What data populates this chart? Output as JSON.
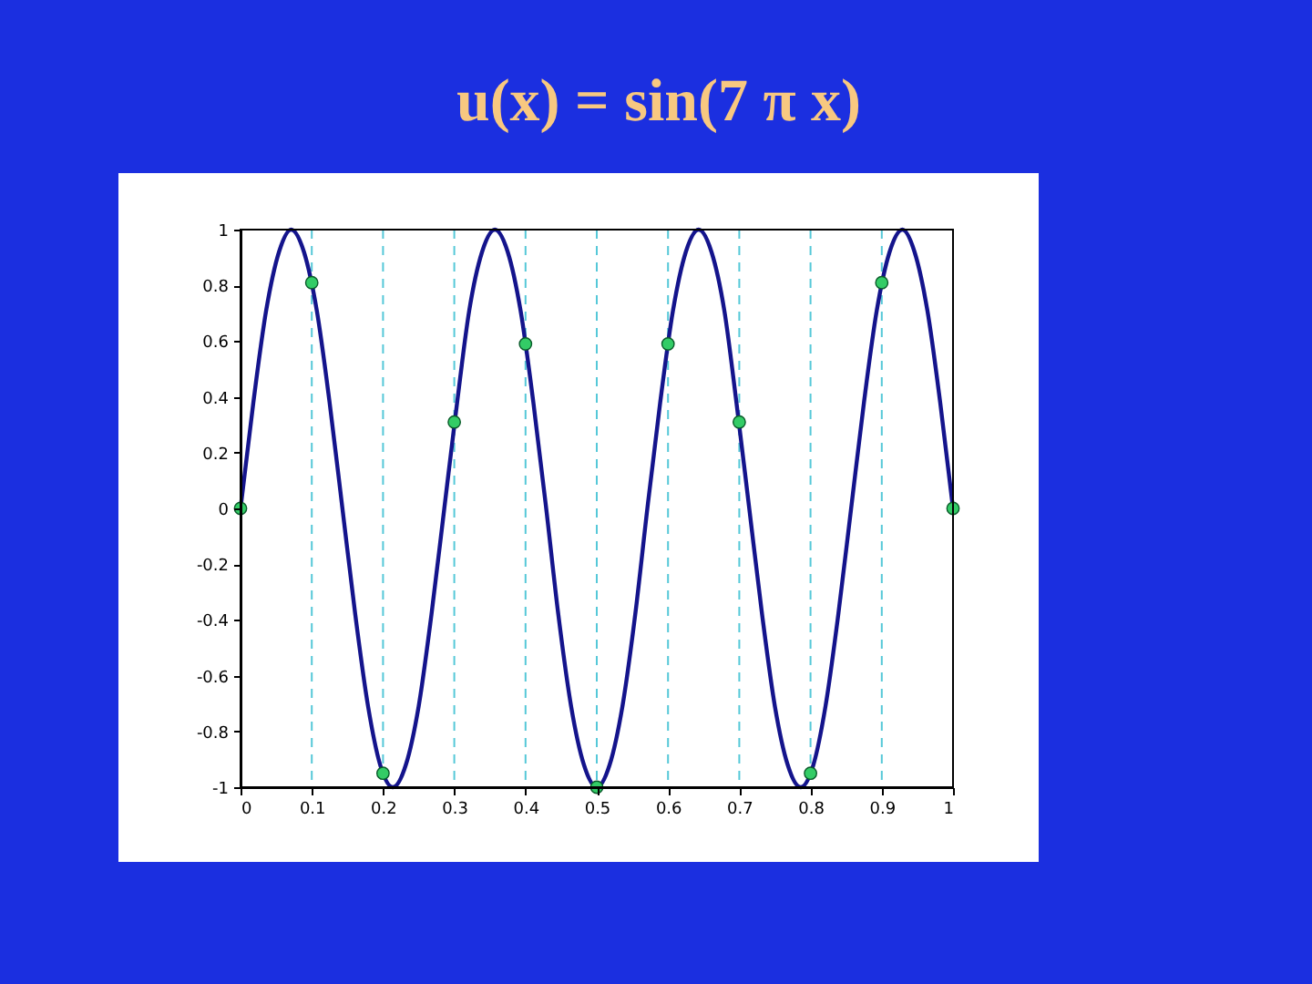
{
  "chart_data": {
    "type": "line",
    "title": "u(x) = sin(7 π x)",
    "xlim": [
      0,
      1
    ],
    "ylim": [
      -1,
      1
    ],
    "xticks": [
      0,
      0.1,
      0.2,
      0.3,
      0.4,
      0.5,
      0.6,
      0.7,
      0.8,
      0.9,
      1
    ],
    "yticks": [
      -1,
      -0.8,
      -0.6,
      -0.4,
      -0.2,
      0,
      0.2,
      0.4,
      0.6,
      0.8,
      1
    ],
    "grid": false,
    "series": [
      {
        "color": "#14148c",
        "marker": "none",
        "line_style": "solid",
        "x": [
          0,
          0.018,
          0.036,
          0.054,
          0.071,
          0.089,
          0.107,
          0.125,
          0.143,
          0.161,
          0.179,
          0.196,
          0.214,
          0.232,
          0.25,
          0.268,
          0.286,
          0.304,
          0.321,
          0.339,
          0.357,
          0.375,
          0.393,
          0.411,
          0.429,
          0.446,
          0.464,
          0.482,
          0.5,
          0.518,
          0.536,
          0.554,
          0.571,
          0.589,
          0.607,
          0.625,
          0.643,
          0.661,
          0.679,
          0.696,
          0.714,
          0.732,
          0.75,
          0.768,
          0.786,
          0.804,
          0.821,
          0.839,
          0.857,
          0.875,
          0.893,
          0.911,
          0.929,
          0.946,
          0.964,
          0.982,
          1
        ],
        "values": [
          0,
          0.38,
          0.71,
          0.92,
          1,
          0.92,
          0.71,
          0.38,
          0,
          -0.38,
          -0.71,
          -0.92,
          -1,
          -0.92,
          -0.71,
          -0.38,
          0,
          0.38,
          0.71,
          0.92,
          1,
          0.92,
          0.71,
          0.38,
          0,
          -0.38,
          -0.71,
          -0.92,
          -1,
          -0.92,
          -0.71,
          -0.38,
          0,
          0.38,
          0.71,
          0.92,
          1,
          0.92,
          0.71,
          0.38,
          0,
          -0.38,
          -0.71,
          -0.92,
          -1,
          -0.92,
          -0.71,
          -0.38,
          0,
          0.38,
          0.71,
          0.92,
          1,
          0.92,
          0.71,
          0.38,
          0
        ]
      },
      {
        "type": "scatter",
        "color": "#33cc66",
        "marker": "circle",
        "x": [
          0,
          0.1,
          0.2,
          0.3,
          0.4,
          0.5,
          0.6,
          0.7,
          0.8,
          0.9,
          1
        ],
        "values": [
          0,
          0.81,
          -0.95,
          0.31,
          0.59,
          -1,
          0.59,
          0.31,
          -0.95,
          0.81,
          0
        ]
      }
    ],
    "ref_lines": [
      {
        "axis": "x",
        "value": 0.1,
        "color": "#55c8d8",
        "line_style": "dashed"
      },
      {
        "axis": "x",
        "value": 0.2,
        "color": "#55c8d8",
        "line_style": "dashed"
      },
      {
        "axis": "x",
        "value": 0.3,
        "color": "#55c8d8",
        "line_style": "dashed"
      },
      {
        "axis": "x",
        "value": 0.4,
        "color": "#55c8d8",
        "line_style": "dashed"
      },
      {
        "axis": "x",
        "value": 0.5,
        "color": "#55c8d8",
        "line_style": "dashed"
      },
      {
        "axis": "x",
        "value": 0.6,
        "color": "#55c8d8",
        "line_style": "dashed"
      },
      {
        "axis": "x",
        "value": 0.7,
        "color": "#55c8d8",
        "line_style": "dashed"
      },
      {
        "axis": "x",
        "value": 0.8,
        "color": "#55c8d8",
        "line_style": "dashed"
      },
      {
        "axis": "x",
        "value": 0.9,
        "color": "#55c8d8",
        "line_style": "dashed"
      }
    ]
  }
}
